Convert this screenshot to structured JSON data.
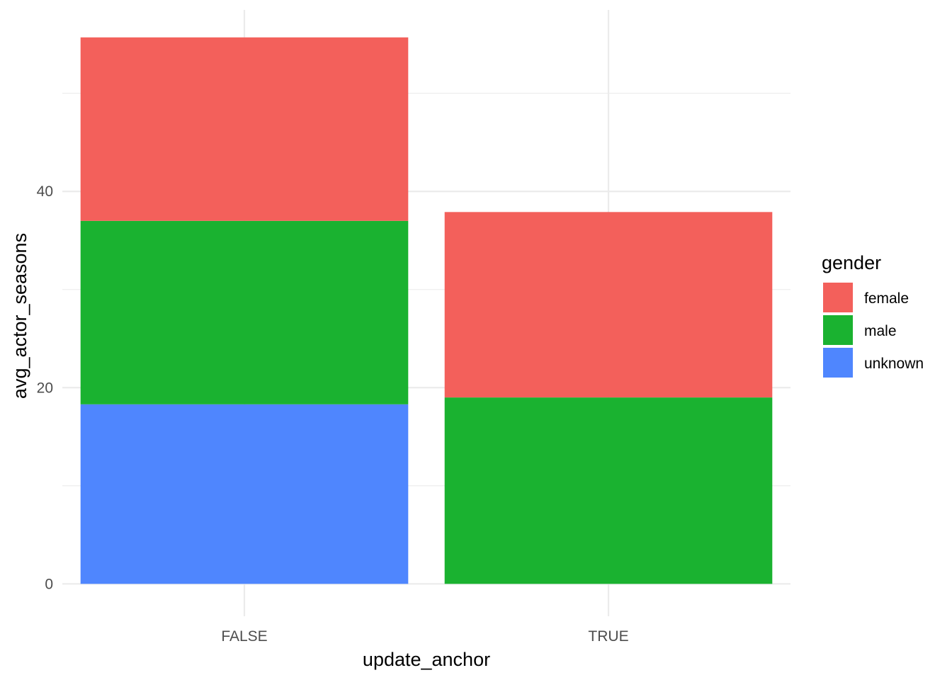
{
  "chart_data": {
    "type": "bar",
    "stacked": true,
    "categories": [
      "FALSE",
      "TRUE"
    ],
    "series": [
      {
        "name": "unknown",
        "values": [
          18.3,
          0
        ],
        "color": "#4f86fe"
      },
      {
        "name": "male",
        "values": [
          18.7,
          19.0
        ],
        "color": "#1ab230"
      },
      {
        "name": "female",
        "values": [
          18.7,
          18.9
        ],
        "color": "#f3605b"
      }
    ],
    "xlabel": "update_anchor",
    "ylabel": "avg_actor_seasons",
    "ylim": [
      -3.3,
      58.5
    ],
    "yticks": [
      0,
      20,
      40
    ],
    "legend": {
      "title": "gender",
      "position": "right",
      "entries": [
        "female",
        "male",
        "unknown"
      ]
    },
    "grid": true
  }
}
